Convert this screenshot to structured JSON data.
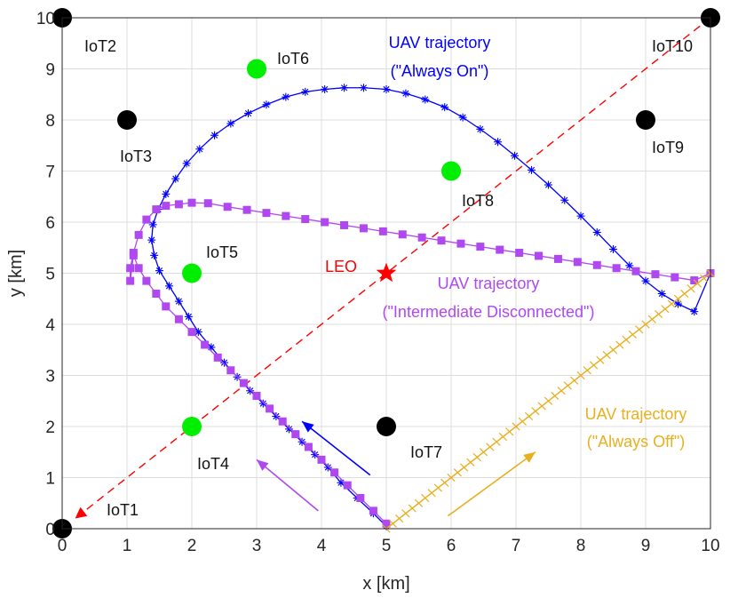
{
  "chart_data": {
    "type": "scatter",
    "xlabel": "x [km]",
    "ylabel": "y [km]",
    "xlim": [
      0,
      10
    ],
    "ylim": [
      0,
      10
    ],
    "xticks": [
      0,
      1,
      2,
      3,
      4,
      5,
      6,
      7,
      8,
      9,
      10
    ],
    "yticks": [
      0,
      1,
      2,
      3,
      4,
      5,
      6,
      7,
      8,
      9,
      10
    ],
    "grid": true,
    "colors": {
      "black_node": "#000000",
      "green_node": "#00ee00",
      "blue_traj": "#0000ff",
      "purple_traj": "#b048f0",
      "orange_traj": "#e8b020",
      "leo": "#ff0000",
      "dashed_line": "#ff0000"
    },
    "nodes": [
      {
        "label": "IoT1",
        "x": 0,
        "y": 0,
        "color": "black"
      },
      {
        "label": "IoT2",
        "x": 0,
        "y": 10,
        "color": "black"
      },
      {
        "label": "IoT3",
        "x": 1,
        "y": 8,
        "color": "black"
      },
      {
        "label": "IoT4",
        "x": 2,
        "y": 2,
        "color": "green"
      },
      {
        "label": "IoT5",
        "x": 2,
        "y": 5,
        "color": "green"
      },
      {
        "label": "IoT6",
        "x": 3,
        "y": 9,
        "color": "green"
      },
      {
        "label": "IoT7",
        "x": 5,
        "y": 2,
        "color": "black"
      },
      {
        "label": "IoT8",
        "x": 6,
        "y": 7,
        "color": "green"
      },
      {
        "label": "IoT9",
        "x": 9,
        "y": 8,
        "color": "black"
      },
      {
        "label": "IoT10",
        "x": 10,
        "y": 10,
        "color": "black"
      }
    ],
    "leo": {
      "label": "LEO",
      "x": 5,
      "y": 5
    },
    "dashed_line": {
      "from": [
        10,
        10
      ],
      "to": [
        0.2,
        0.2
      ]
    },
    "series": [
      {
        "label_lines": [
          "UAV trajectory",
          "(\"Always On\")"
        ],
        "marker": "asterisk",
        "x": [
          5,
          4.8,
          4.55,
          4.3,
          4.1,
          3.9,
          3.7,
          3.5,
          3.3,
          3.1,
          2.9,
          2.7,
          2.5,
          2.3,
          2.1,
          1.95,
          1.8,
          1.65,
          1.5,
          1.42,
          1.38,
          1.4,
          1.48,
          1.6,
          1.75,
          1.92,
          2.12,
          2.35,
          2.6,
          2.87,
          3.15,
          3.45,
          3.75,
          4.05,
          4.35,
          4.65,
          5.0,
          5.3,
          5.6,
          5.9,
          6.18,
          6.45,
          6.72,
          6.98,
          7.24,
          7.5,
          7.75,
          8.0,
          8.25,
          8.5,
          8.75,
          9.0,
          9.25,
          9.5,
          9.75,
          10.0
        ],
        "y": [
          0.05,
          0.3,
          0.6,
          0.9,
          1.2,
          1.45,
          1.7,
          1.95,
          2.2,
          2.45,
          2.7,
          2.97,
          3.25,
          3.55,
          3.85,
          4.15,
          4.45,
          4.75,
          5.05,
          5.35,
          5.65,
          5.95,
          6.25,
          6.55,
          6.85,
          7.15,
          7.43,
          7.7,
          7.93,
          8.13,
          8.3,
          8.45,
          8.55,
          8.6,
          8.63,
          8.63,
          8.6,
          8.52,
          8.4,
          8.25,
          8.05,
          7.82,
          7.57,
          7.3,
          7.02,
          6.73,
          6.43,
          6.12,
          5.8,
          5.47,
          5.15,
          4.85,
          4.6,
          4.4,
          4.25,
          5.0
        ]
      },
      {
        "label_lines": [
          "UAV trajectory",
          "(\"Intermediate Disconnected\")"
        ],
        "marker": "square",
        "x": [
          5,
          4.8,
          4.6,
          4.4,
          4.2,
          4.0,
          3.8,
          3.6,
          3.4,
          3.2,
          3.0,
          2.8,
          2.6,
          2.4,
          2.2,
          2.0,
          1.8,
          1.6,
          1.45,
          1.3,
          1.18,
          1.1,
          1.05,
          1.05,
          1.1,
          1.18,
          1.3,
          1.45,
          1.6,
          1.8,
          2.0,
          2.25,
          2.55,
          2.85,
          3.15,
          3.45,
          3.75,
          4.05,
          4.35,
          4.65,
          4.95,
          5.25,
          5.55,
          5.85,
          6.15,
          6.45,
          6.75,
          7.05,
          7.35,
          7.65,
          7.95,
          8.25,
          8.55,
          8.85,
          9.15,
          9.45,
          9.75,
          10.0
        ],
        "y": [
          0.1,
          0.35,
          0.6,
          0.85,
          1.1,
          1.35,
          1.6,
          1.85,
          2.1,
          2.35,
          2.6,
          2.85,
          3.1,
          3.35,
          3.6,
          3.85,
          4.1,
          4.35,
          4.6,
          4.85,
          5.1,
          5.35,
          4.85,
          5.1,
          5.4,
          5.75,
          6.05,
          6.25,
          6.32,
          6.35,
          6.38,
          6.37,
          6.3,
          6.24,
          6.18,
          6.12,
          6.06,
          6.0,
          5.94,
          5.88,
          5.82,
          5.76,
          5.7,
          5.64,
          5.58,
          5.52,
          5.46,
          5.4,
          5.34,
          5.28,
          5.22,
          5.16,
          5.1,
          5.04,
          4.98,
          4.92,
          4.86,
          5.0
        ]
      },
      {
        "label_lines": [
          "UAV trajectory",
          "(\"Always Off\")"
        ],
        "marker": "tick",
        "x": [
          5,
          10
        ],
        "y": [
          0,
          5
        ],
        "markers": 50
      }
    ],
    "arrows": [
      {
        "from": [
          4.75,
          1.05
        ],
        "to": [
          3.7,
          2.1
        ],
        "color": "blue"
      },
      {
        "from": [
          3.95,
          0.35
        ],
        "to": [
          3.0,
          1.35
        ],
        "color": "purple"
      },
      {
        "from": [
          5.95,
          0.25
        ],
        "to": [
          7.3,
          1.5
        ],
        "color": "orange"
      }
    ]
  }
}
